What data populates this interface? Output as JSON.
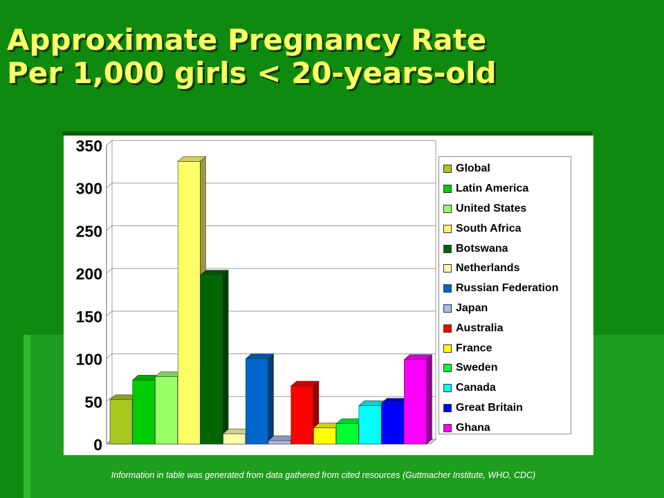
{
  "slide": {
    "title_line1": "Approximate Pregnancy Rate",
    "title_line2": "Per 1,000 girls < 20-years-old",
    "footnote": "Information in table was generated from data gathered from cited resources (Guttmacher Institute, WHO, CDC)"
  },
  "colors": {
    "background": "#0e8a0e",
    "title": "#ffff66"
  },
  "chart_data": {
    "type": "bar",
    "title": "",
    "xlabel": "",
    "ylabel": "",
    "ylim": [
      0,
      350
    ],
    "yticks": [
      "350",
      "300",
      "250",
      "200",
      "150",
      "100",
      "50",
      "0"
    ],
    "grid": true,
    "legend_position": "right",
    "series": [
      {
        "name": "Global",
        "value": 52,
        "color": "#a6c81e"
      },
      {
        "name": "Latin America",
        "value": 75,
        "color": "#00cc00"
      },
      {
        "name": "United States",
        "value": 79,
        "color": "#99ff66"
      },
      {
        "name": "South Africa",
        "value": 331,
        "color": "#ffff66"
      },
      {
        "name": "Botswana",
        "value": 198,
        "color": "#006600"
      },
      {
        "name": "Netherlands",
        "value": 12,
        "color": "#ffffaa"
      },
      {
        "name": "Russian Federation",
        "value": 100,
        "color": "#0066cc"
      },
      {
        "name": "Japan",
        "value": 4,
        "color": "#b0b8e8"
      },
      {
        "name": "Australia",
        "value": 68,
        "color": "#ff0000"
      },
      {
        "name": "France",
        "value": 19,
        "color": "#ffff00"
      },
      {
        "name": "Sweden",
        "value": 24,
        "color": "#00ff33"
      },
      {
        "name": "Canada",
        "value": 45,
        "color": "#00ffff"
      },
      {
        "name": "Great Britain",
        "value": 48,
        "color": "#0000ff"
      },
      {
        "name": "Ghana",
        "value": 99,
        "color": "#ff00ff"
      }
    ]
  }
}
